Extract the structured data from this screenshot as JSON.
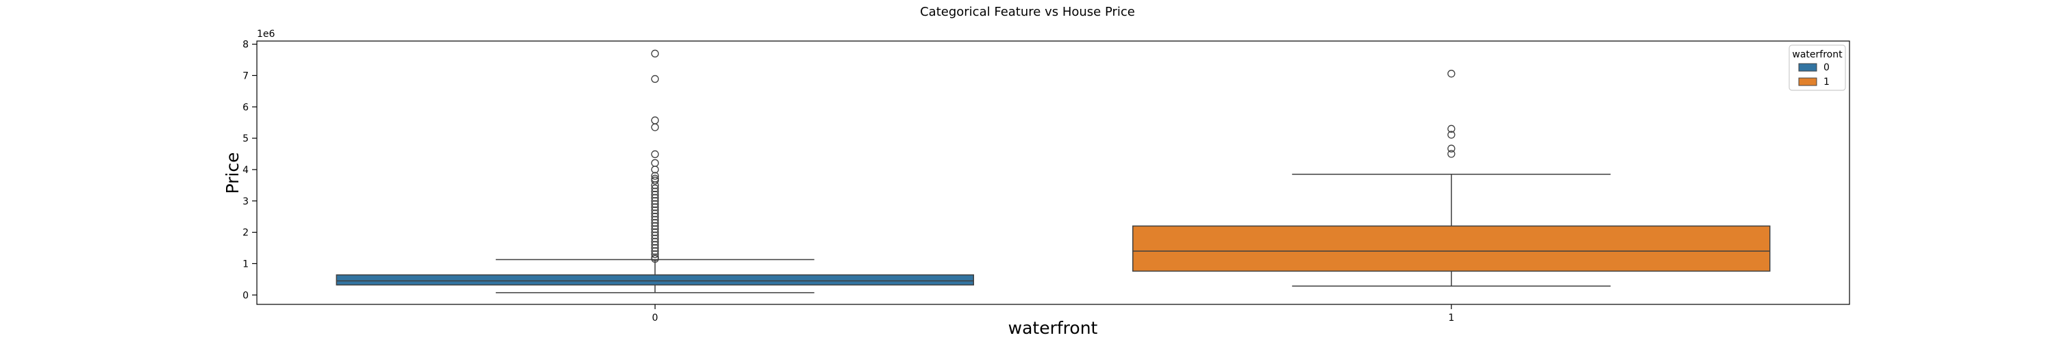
{
  "chart_data": {
    "type": "box",
    "title": "Categorical Feature vs House Price",
    "xlabel": "waterfront",
    "ylabel": "Price",
    "y_offset_label": "1e6",
    "y_scale_factor": 1000000,
    "ylim": [
      -300000,
      8100000
    ],
    "y_ticks": [
      0,
      1,
      2,
      3,
      4,
      5,
      6,
      7,
      8
    ],
    "categories": [
      "0",
      "1"
    ],
    "legend": {
      "title": "waterfront",
      "entries": [
        "0",
        "1"
      ],
      "position": "top-right"
    },
    "colors": {
      "0": "#3274a1",
      "1": "#e1812c"
    },
    "boxes": [
      {
        "category": "0",
        "whisker_low": 75000,
        "q1": 320000,
        "median": 450000,
        "q3": 640000,
        "whisker_high": 1130000,
        "outliers": [
          7700000,
          6890000,
          5570000,
          5350000,
          4490000,
          4210000,
          4000000,
          3800000,
          3710000,
          3650000,
          3500000,
          3400000,
          3300000,
          3200000,
          3100000,
          3000000,
          2900000,
          2800000,
          2700000,
          2600000,
          2500000,
          2400000,
          2300000,
          2200000,
          2100000,
          2000000,
          1900000,
          1800000,
          1700000,
          1600000,
          1500000,
          1400000,
          1300000,
          1200000,
          1150000
        ]
      },
      {
        "category": "1",
        "whisker_low": 285000,
        "q1": 760000,
        "median": 1400000,
        "q3": 2200000,
        "whisker_high": 3850000,
        "outliers": [
          7060000,
          5300000,
          5110000,
          4670000,
          4500000
        ]
      }
    ]
  }
}
